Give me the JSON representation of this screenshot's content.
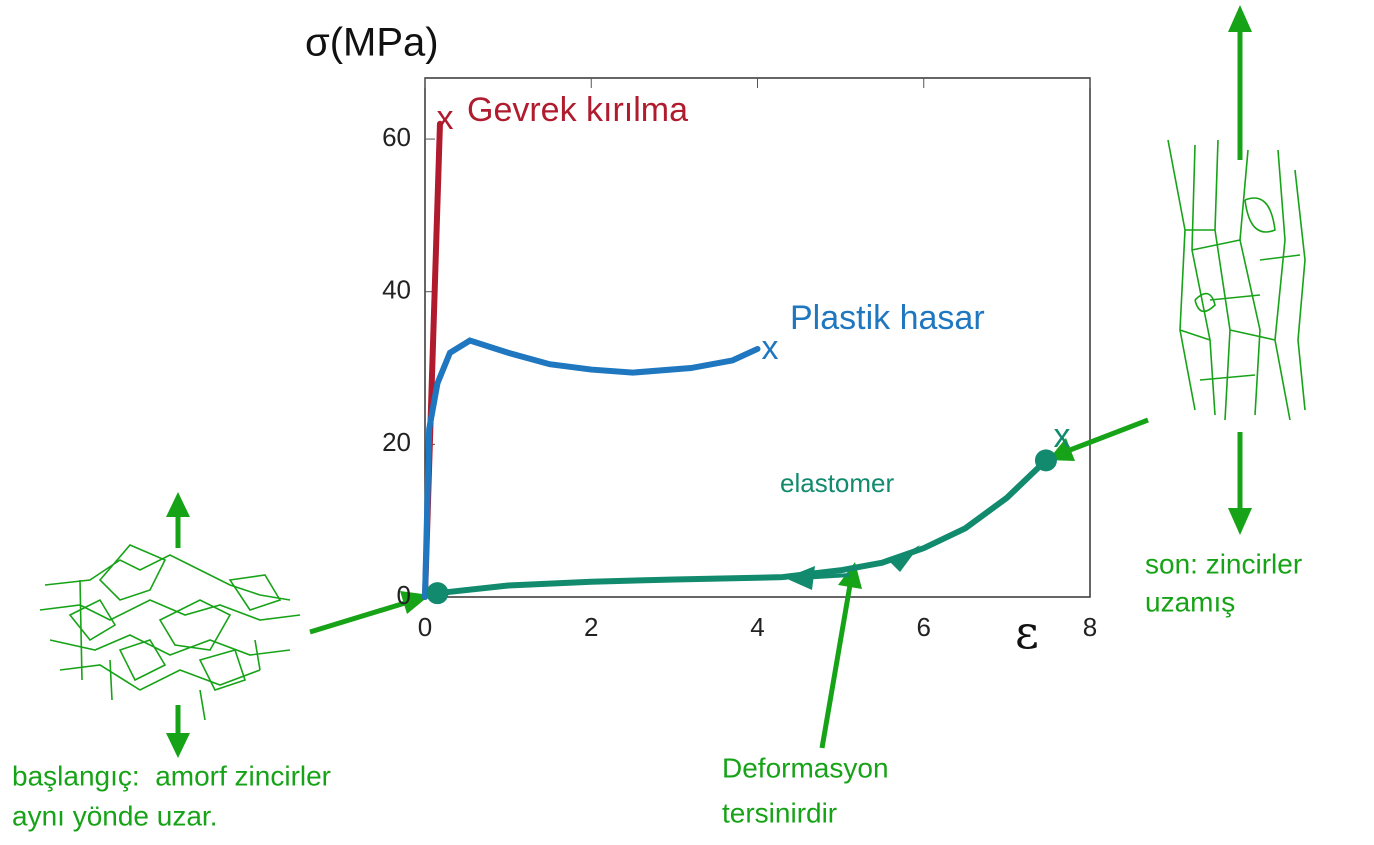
{
  "chart_data": {
    "type": "line",
    "ylabel": "σ(MPa)",
    "xlabel": "ε",
    "xlim": [
      0,
      8
    ],
    "ylim": [
      0,
      68
    ],
    "xticks": [
      0,
      2,
      4,
      6,
      8
    ],
    "yticks": [
      0,
      20,
      40,
      60
    ],
    "failure_marker": "x",
    "series": [
      {
        "name": "Gevrek kırılma",
        "color": "#b01c2e",
        "x": [
          0,
          0.18
        ],
        "values": [
          0,
          62
        ]
      },
      {
        "name": "Plastik hasar",
        "color": "#1f77c0",
        "x": [
          0,
          0.05,
          0.15,
          0.3,
          0.54,
          1,
          1.5,
          2,
          2.5,
          3.2,
          3.7,
          4
        ],
        "values": [
          0,
          22,
          28,
          32,
          33.6,
          32,
          30.5,
          29.8,
          29.4,
          30,
          31,
          32.5
        ]
      },
      {
        "name": "elastomer",
        "color": "#118a6e",
        "x": [
          0.15,
          1,
          2,
          3,
          4.3,
          5,
          5.5,
          6,
          6.5,
          7,
          7.47
        ],
        "values": [
          0.5,
          1.5,
          2,
          2.3,
          2.6,
          3.5,
          4.5,
          6.4,
          9,
          13,
          17.9
        ]
      }
    ],
    "annotations": [
      "başlangıç:  amorf zincirler",
      "aynı yönde uzar.",
      "son: zincirler",
      "uzamış",
      "Deformasyon",
      "tersinirdir"
    ]
  }
}
